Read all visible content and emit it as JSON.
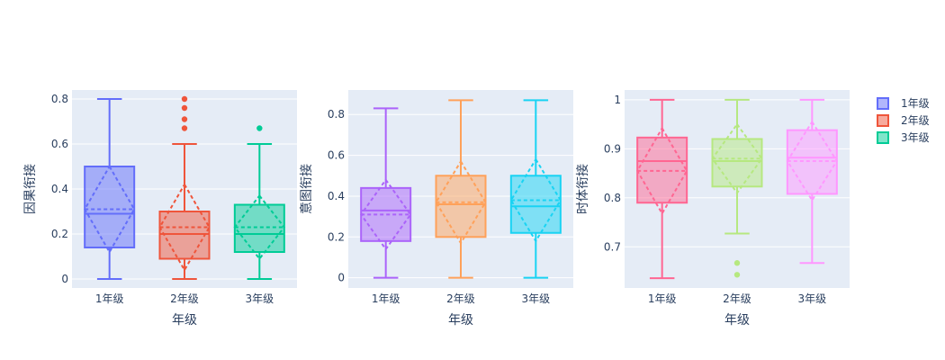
{
  "chart_data": [
    {
      "type": "box",
      "xlabel": "年级",
      "ylabel": "因果衔接",
      "categories": [
        "1年级",
        "2年级",
        "3年级"
      ],
      "ylim": [
        -0.04,
        0.84
      ],
      "yticks": [
        0,
        0.2,
        0.4,
        0.6,
        0.8
      ],
      "tick_labels": [
        "0",
        "0.2",
        "0.4",
        "0.6",
        "0.8"
      ],
      "grid": true,
      "series": [
        {
          "name": "1年级",
          "color": "#636efa",
          "min": 0,
          "q1": 0.14,
          "median": 0.29,
          "q3": 0.5,
          "max": 0.8,
          "mean": 0.31,
          "sd": 0.19,
          "outliers": []
        },
        {
          "name": "2年级",
          "color": "#ef553b",
          "min": 0,
          "q1": 0.09,
          "median": 0.2,
          "q3": 0.3,
          "max": 0.6,
          "mean": 0.23,
          "sd": 0.19,
          "outliers": [
            0.8,
            0.76,
            0.71,
            0.67
          ]
        },
        {
          "name": "3年级",
          "color": "#00cc96",
          "min": 0,
          "q1": 0.12,
          "median": 0.2,
          "q3": 0.33,
          "max": 0.6,
          "mean": 0.23,
          "sd": 0.14,
          "outliers": [
            0.67
          ]
        }
      ]
    },
    {
      "type": "box",
      "xlabel": "年级",
      "ylabel": "意图衔接",
      "categories": [
        "1年级",
        "2年级",
        "3年级"
      ],
      "ylim": [
        -0.05,
        0.92
      ],
      "yticks": [
        0,
        0.2,
        0.4,
        0.6,
        0.8
      ],
      "tick_labels": [
        "0",
        "0.2",
        "0.4",
        "0.6",
        "0.8"
      ],
      "grid": true,
      "series": [
        {
          "name": "1年级",
          "color": "#ab63fa",
          "min": 0,
          "q1": 0.18,
          "median": 0.33,
          "q3": 0.44,
          "max": 0.83,
          "mean": 0.31,
          "sd": 0.17,
          "outliers": []
        },
        {
          "name": "2年级",
          "color": "#ffa15a",
          "min": 0,
          "q1": 0.2,
          "median": 0.36,
          "q3": 0.5,
          "max": 0.87,
          "mean": 0.37,
          "sd": 0.2,
          "outliers": []
        },
        {
          "name": "3年级",
          "color": "#19d3f3",
          "min": 0,
          "q1": 0.22,
          "median": 0.35,
          "q3": 0.5,
          "max": 0.87,
          "mean": 0.38,
          "sd": 0.2,
          "outliers": []
        }
      ]
    },
    {
      "type": "box",
      "xlabel": "年级",
      "ylabel": "时体衔接",
      "categories": [
        "1年级",
        "2年级",
        "3年级"
      ],
      "ylim": [
        0.616,
        1.02
      ],
      "yticks": [
        0.7,
        0.8,
        0.9,
        1
      ],
      "tick_labels": [
        "0.7",
        "0.8",
        "0.9",
        "1"
      ],
      "grid": true,
      "series": [
        {
          "name": "1年级",
          "color": "#ff6692",
          "min": 0.636,
          "q1": 0.79,
          "median": 0.875,
          "q3": 0.923,
          "max": 1.0,
          "mean": 0.855,
          "sd": 0.087,
          "outliers": []
        },
        {
          "name": "2年级",
          "color": "#b6e880",
          "min": 0.727,
          "q1": 0.823,
          "median": 0.875,
          "q3": 0.92,
          "max": 1.0,
          "mean": 0.88,
          "sd": 0.07,
          "outliers": [
            0.667,
            0.643
          ]
        },
        {
          "name": "3年级",
          "color": "#ff97ff",
          "min": 0.667,
          "q1": 0.808,
          "median": 0.882,
          "q3": 0.938,
          "max": 1.0,
          "mean": 0.875,
          "sd": 0.08,
          "outliers": []
        }
      ]
    }
  ],
  "legend": {
    "placement": "top-right",
    "items": [
      {
        "label": "1年级",
        "color": "#636efa"
      },
      {
        "label": "2年级",
        "color": "#ef553b"
      },
      {
        "label": "3年级",
        "color": "#00cc96"
      }
    ]
  }
}
